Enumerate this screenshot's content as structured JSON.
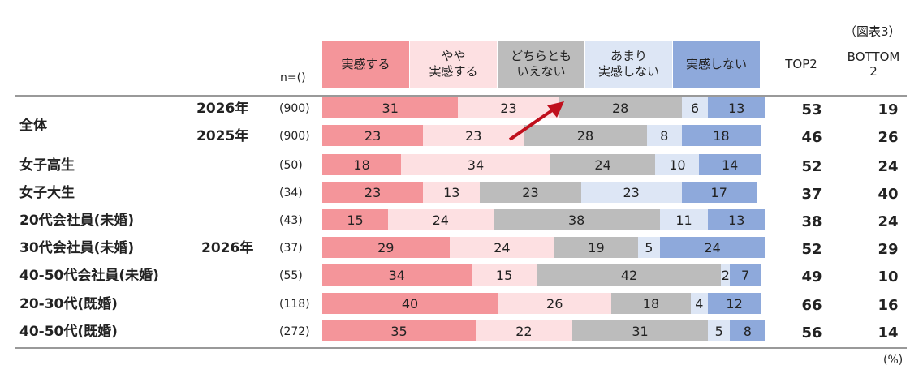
{
  "figure_label": "（図表3）",
  "unit_label": "(%)",
  "n_header": "n=()",
  "top2_header": "TOP2",
  "bottom2_header": "BOTTOM\n2",
  "colors": {
    "cat1": "#f4959a",
    "cat2": "#fde0e2",
    "cat3": "#bcbcbc",
    "cat4": "#dde6f5",
    "cat5": "#8ea9db",
    "arrow": "#c0101d"
  },
  "chart_data": {
    "type": "bar",
    "stacked": true,
    "orientation": "horizontal",
    "legend_position": "top",
    "xlim": [
      0,
      100
    ],
    "categories_legend": [
      "実感する",
      "やや\n実感する",
      "どちらとも\nいえない",
      "あまり\n実感しない",
      "実感しない"
    ],
    "rows": [
      {
        "label": "全体",
        "year": "2026年",
        "n": "(900)",
        "values": [
          31,
          23,
          28,
          6,
          13
        ],
        "top2": "53",
        "bottom2": "19"
      },
      {
        "label": "",
        "year": "2025年",
        "n": "(900)",
        "values": [
          23,
          23,
          28,
          8,
          18
        ],
        "top2": "46",
        "bottom2": "26"
      },
      {
        "label": "女子高生",
        "year": "",
        "n": "(50)",
        "values": [
          18,
          34,
          24,
          10,
          14
        ],
        "top2": "52",
        "bottom2": "24"
      },
      {
        "label": "女子大生",
        "year": "",
        "n": "(34)",
        "values": [
          23,
          13,
          23,
          23,
          17
        ],
        "top2": "37",
        "bottom2": "40"
      },
      {
        "label": "20代会社員(未婚)",
        "year": "",
        "n": "(43)",
        "values": [
          15,
          24,
          38,
          11,
          13
        ],
        "top2": "38",
        "bottom2": "24"
      },
      {
        "label": "30代会社員(未婚)",
        "year": "2026年",
        "n": "(37)",
        "values": [
          29,
          24,
          19,
          5,
          24
        ],
        "top2": "52",
        "bottom2": "29"
      },
      {
        "label": "40-50代会社員(未婚)",
        "year": "",
        "n": "(55)",
        "values": [
          34,
          15,
          42,
          2,
          7
        ],
        "top2": "49",
        "bottom2": "10"
      },
      {
        "label": "20-30代(既婚)",
        "year": "",
        "n": "(118)",
        "values": [
          40,
          26,
          18,
          4,
          12
        ],
        "top2": "66",
        "bottom2": "16"
      },
      {
        "label": "40-50代(既婚)",
        "year": "",
        "n": "(272)",
        "values": [
          35,
          22,
          31,
          5,
          8
        ],
        "top2": "56",
        "bottom2": "14"
      }
    ]
  }
}
